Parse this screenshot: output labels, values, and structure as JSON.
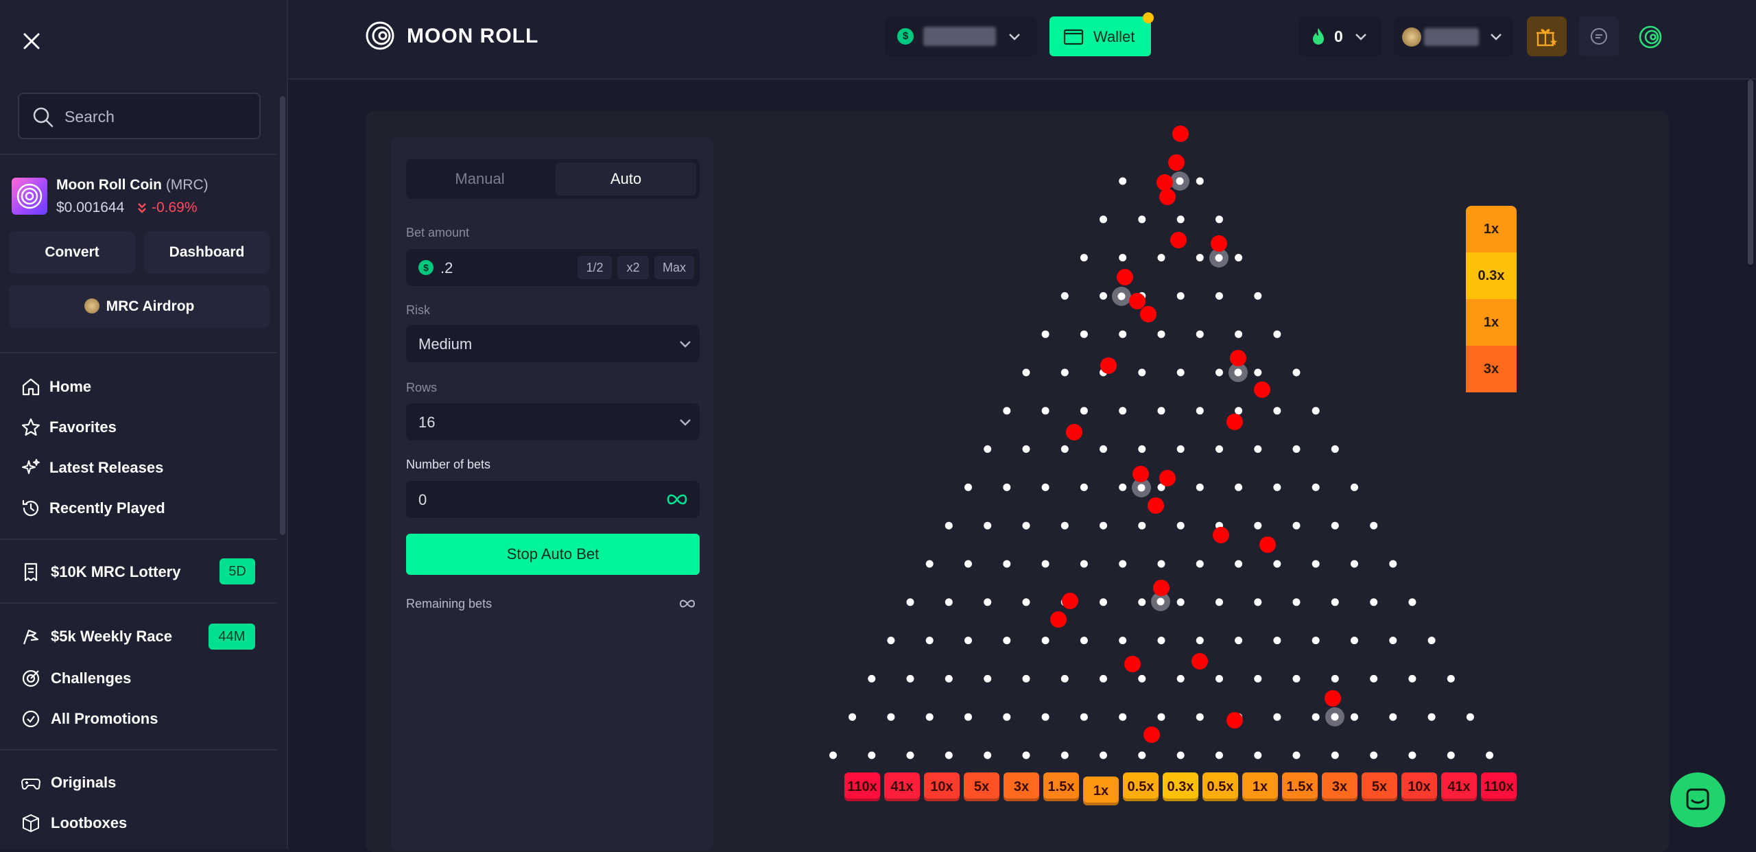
{
  "sidebar": {
    "search_placeholder": "Search",
    "coin": {
      "name": "Moon Roll Coin",
      "symbol": "(MRC)",
      "price": "$0.001644",
      "change": "-0.69%"
    },
    "convert_label": "Convert",
    "dashboard_label": "Dashboard",
    "airdrop_label": "MRC Airdrop",
    "nav": [
      "Home",
      "Favorites",
      "Latest Releases",
      "Recently Played"
    ],
    "lottery": {
      "label": "$10K MRC Lottery",
      "badge": "5D"
    },
    "race": {
      "label": "$5k Weekly Race",
      "badge": "44M"
    },
    "promos": [
      "Challenges",
      "All Promotions"
    ],
    "games": [
      "Originals",
      "Lootboxes"
    ]
  },
  "header": {
    "logo_text": "MOON ROLL",
    "wallet_label": "Wallet",
    "fire_count": "0"
  },
  "game": {
    "tabs": [
      "Manual",
      "Auto"
    ],
    "active_tab": "Auto",
    "bet_label": "Bet amount",
    "bet_value": ".2",
    "half_label": "1/2",
    "double_label": "x2",
    "max_label": "Max",
    "risk_label": "Risk",
    "risk_value": "Medium",
    "rows_label": "Rows",
    "rows_value": "16",
    "num_bets_label": "Number of bets",
    "num_bets_value": "0",
    "stop_label": "Stop Auto Bet",
    "remaining_label": "Remaining bets",
    "multipliers": [
      "110x",
      "41x",
      "10x",
      "5x",
      "3x",
      "1.5x",
      "1x",
      "0.5x",
      "0.3x",
      "0.5x",
      "1x",
      "1.5x",
      "3x",
      "5x",
      "10x",
      "41x",
      "110x"
    ],
    "history": [
      "1x",
      "0.3x",
      "1x",
      "3x"
    ]
  },
  "colors": {
    "accent": "#00f59b",
    "ball": "#ff0000",
    "peg": "#ffffff",
    "negative": "#ff4b5c"
  }
}
